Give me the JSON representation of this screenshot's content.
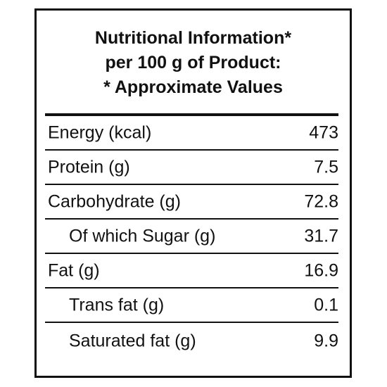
{
  "heading": {
    "line1": "Nutritional Information*",
    "line2": "per 100 g of Product:",
    "line3": "* Approximate Values"
  },
  "rows": [
    {
      "name": "Energy (kcal)",
      "value": "473"
    },
    {
      "name": "Protein (g)",
      "value": "7.5"
    },
    {
      "name": "Carbohydrate (g)",
      "value": "72.8"
    },
    {
      "name": "Of which Sugar (g)",
      "value": "31.7"
    },
    {
      "name": "Fat (g)",
      "value": "16.9"
    },
    {
      "name": "Trans fat (g)",
      "value": "0.1"
    },
    {
      "name": "Saturated fat (g)",
      "value": "9.9"
    }
  ]
}
